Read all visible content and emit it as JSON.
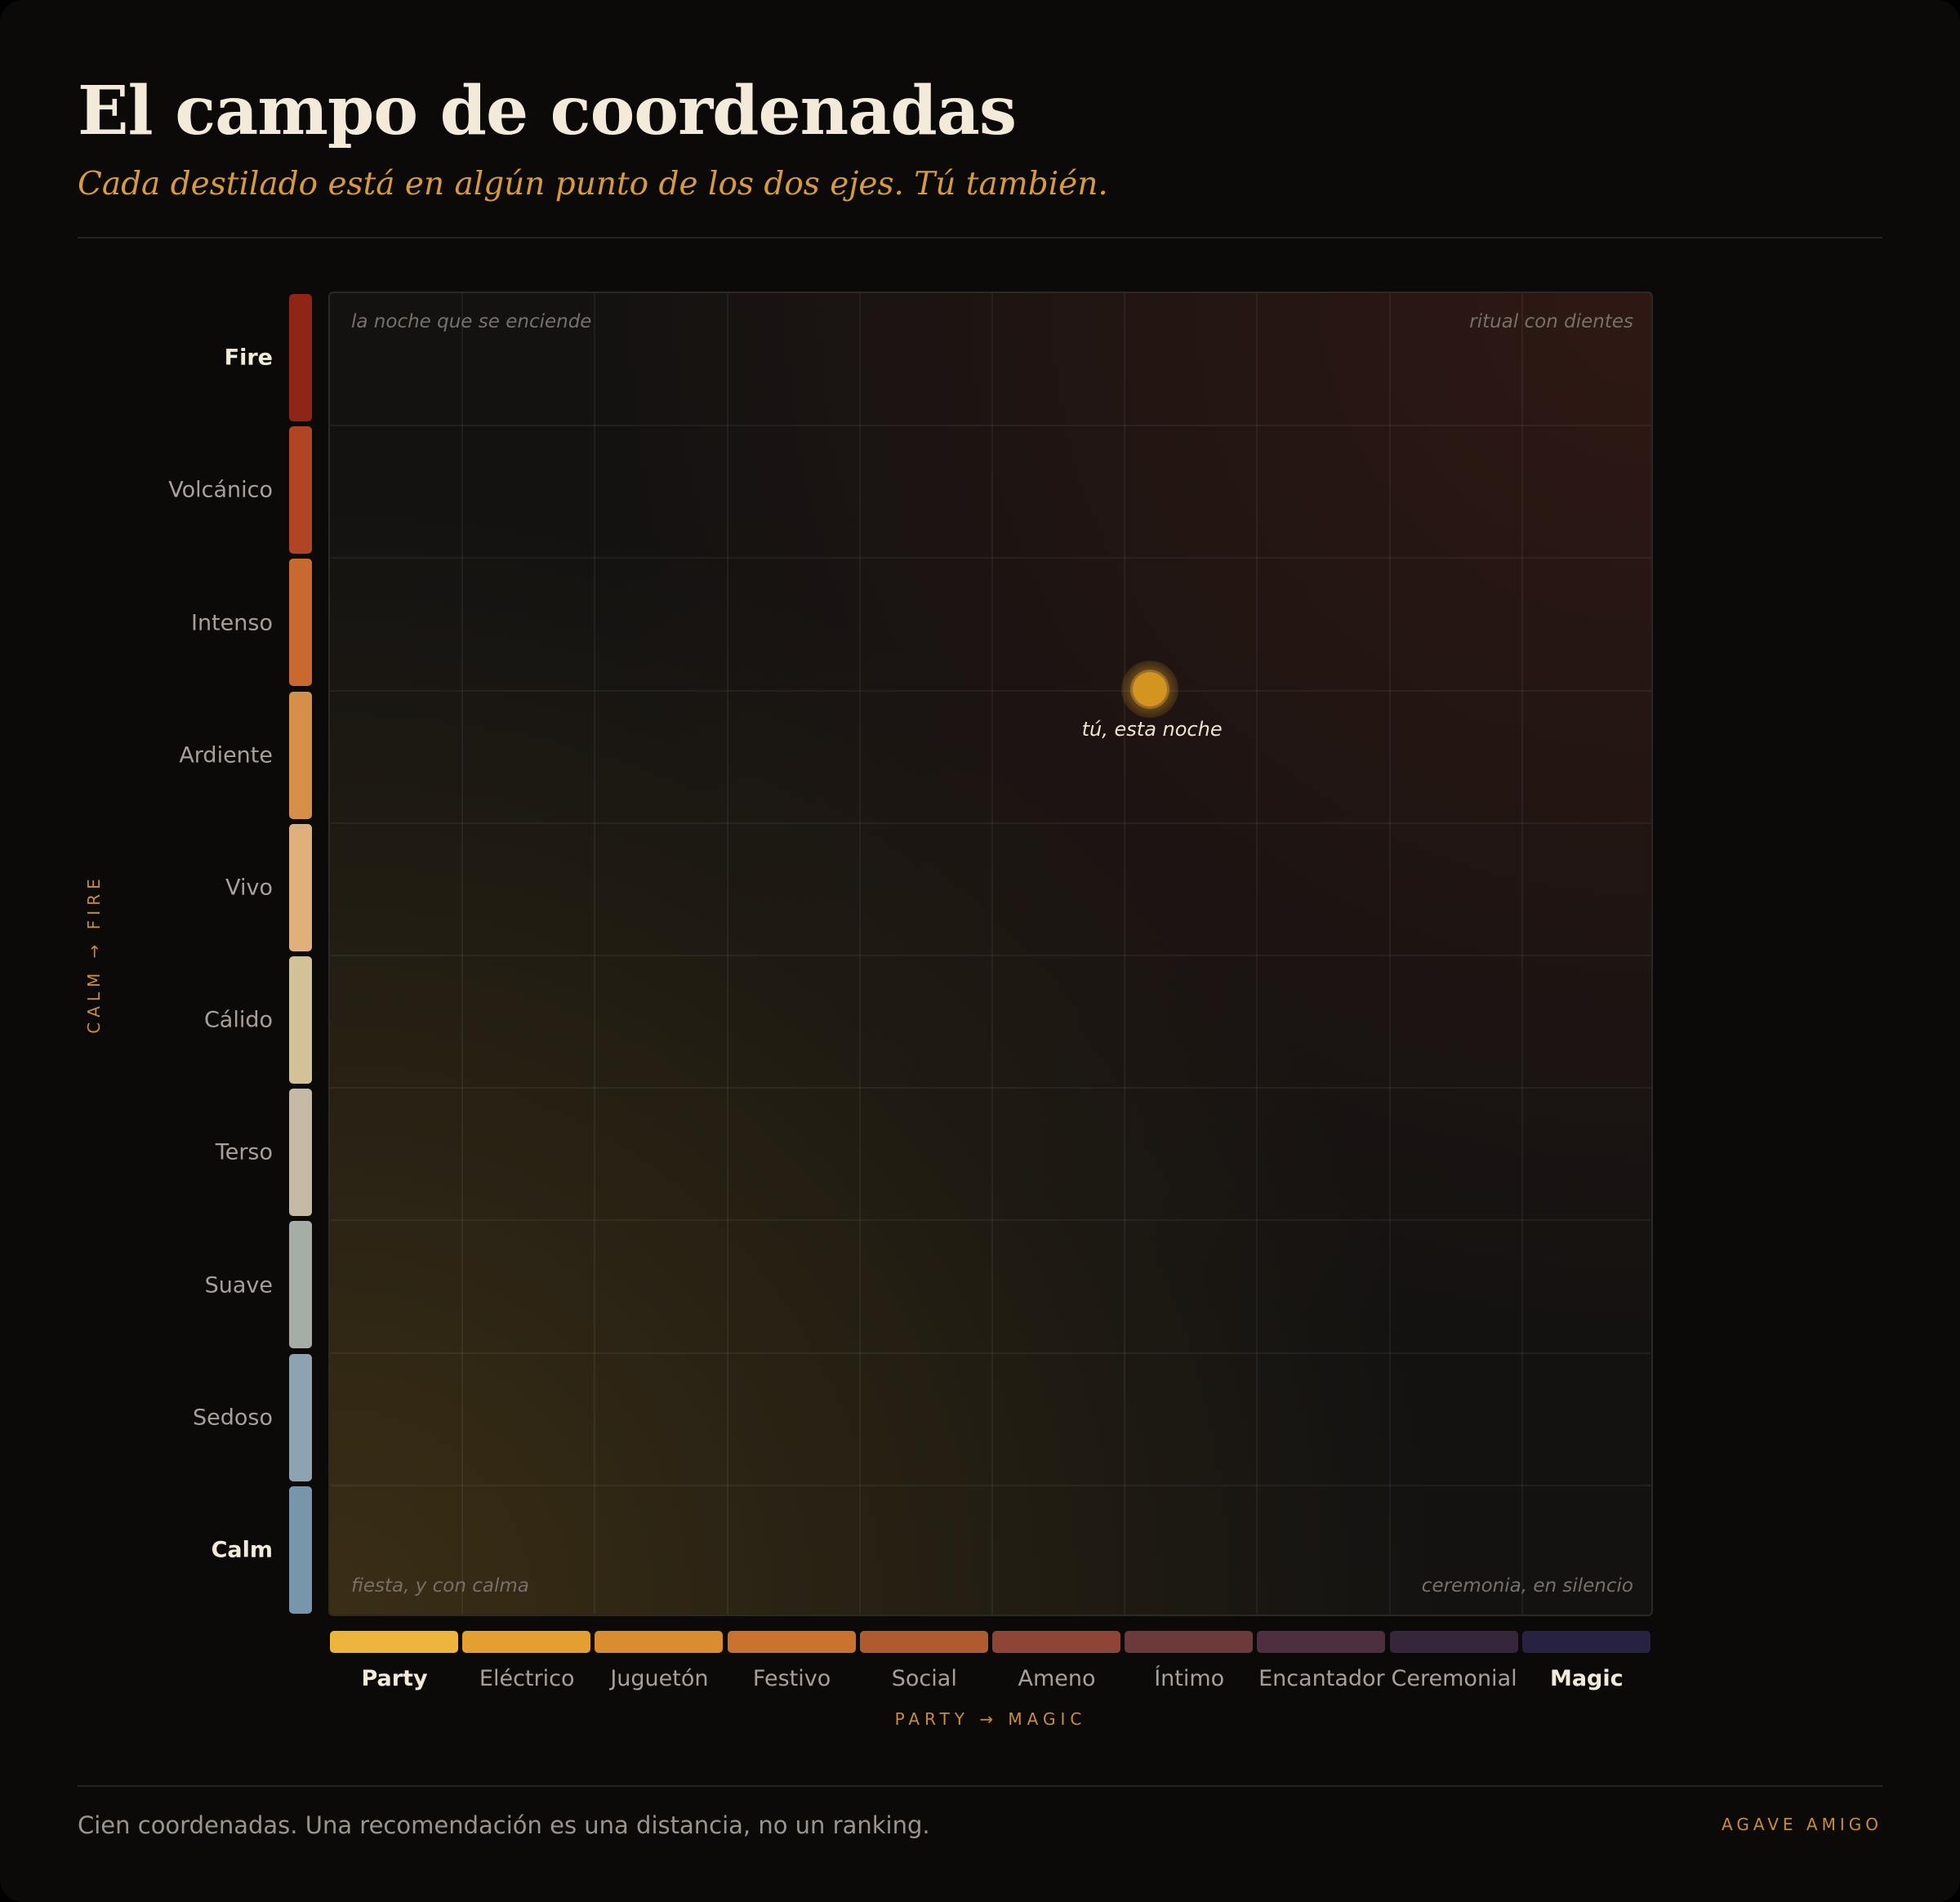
{
  "header": {
    "title": "El campo de coordenadas",
    "subtitle": "Cada destilado está en algún punto de los dos ejes. Tú también."
  },
  "field": {
    "corners": {
      "top_left": "la noche que se enciende",
      "top_right": "ritual con dientes",
      "bottom_left": "fiesta, y con calma",
      "bottom_right": "ceremonia, en silencio"
    },
    "marker": {
      "label": "tú, esta noche",
      "x_level": 6.2,
      "y_level": 7.0
    }
  },
  "y_axis": {
    "title": "CALM → FIRE",
    "levels": [
      {
        "label": "Fire",
        "color": "#8f2516"
      },
      {
        "label": "Volcánico",
        "color": "#b04424"
      },
      {
        "label": "Intenso",
        "color": "#c86a30"
      },
      {
        "label": "Ardiente",
        "color": "#d68f48"
      },
      {
        "label": "Vivo",
        "color": "#e0b07a"
      },
      {
        "label": "Cálido",
        "color": "#d3c198"
      },
      {
        "label": "Terso",
        "color": "#c3b9a5"
      },
      {
        "label": "Suave",
        "color": "#a6aca6"
      },
      {
        "label": "Sedoso",
        "color": "#8da3b0"
      },
      {
        "label": "Calm",
        "color": "#7795ab"
      }
    ]
  },
  "x_axis": {
    "title": "PARTY → MAGIC",
    "levels": [
      {
        "label": "Party",
        "color": "#eeb53c"
      },
      {
        "label": "Eléctrico",
        "color": "#e3a030"
      },
      {
        "label": "Juguetón",
        "color": "#d98d2e"
      },
      {
        "label": "Festivo",
        "color": "#c8722e"
      },
      {
        "label": "Social",
        "color": "#b05a30"
      },
      {
        "label": "Ameno",
        "color": "#8e4536"
      },
      {
        "label": "Íntimo",
        "color": "#6d3a3b"
      },
      {
        "label": "Encantador",
        "color": "#4d2f40"
      },
      {
        "label": "Ceremonial",
        "color": "#35263c"
      },
      {
        "label": "Magic",
        "color": "#272242"
      }
    ]
  },
  "footer": {
    "note": "Cien coordenadas. Una recomendación es una distancia, no un ranking.",
    "brand": "AGAVE AMIGO"
  }
}
